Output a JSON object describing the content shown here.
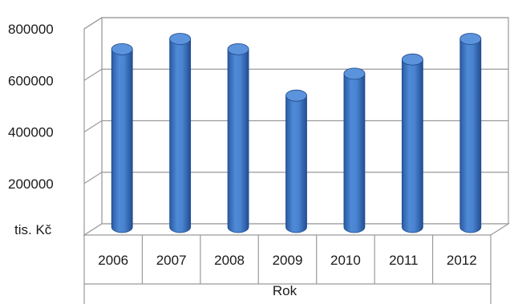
{
  "chart_data": {
    "type": "bar",
    "title": "",
    "categories": [
      "2006",
      "2007",
      "2008",
      "2009",
      "2010",
      "2011",
      "2012"
    ],
    "values": [
      690000,
      730000,
      690000,
      510000,
      595000,
      650000,
      730000
    ],
    "xlabel": "Rok",
    "ylabel": "tis. Kč",
    "ylim": [
      0,
      800000
    ],
    "yticks": [
      "200000",
      "400000",
      "600000",
      "800000"
    ],
    "grid": true,
    "legend": "none",
    "bar_color": "#3f77c5"
  }
}
